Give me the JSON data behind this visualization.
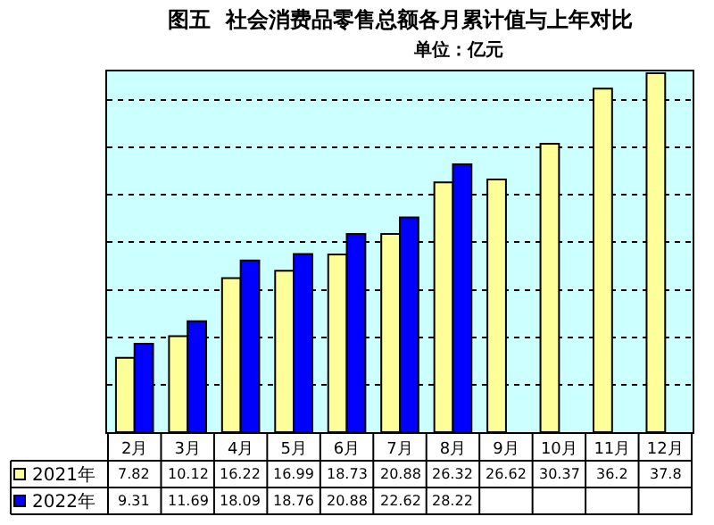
{
  "chart_data": {
    "type": "bar",
    "title": "图五  社会消费品零售总额各月累计值与上年对比",
    "subtitle": "单位：亿元",
    "categories": [
      "2月",
      "3月",
      "4月",
      "5月",
      "6月",
      "7月",
      "8月",
      "9月",
      "10月",
      "11月",
      "12月"
    ],
    "series": [
      {
        "name": "2021年",
        "color": "#ffff99",
        "values": [
          7.82,
          10.12,
          16.22,
          16.99,
          18.73,
          20.88,
          26.32,
          26.62,
          30.37,
          36.2,
          37.8
        ]
      },
      {
        "name": "2022年",
        "color": "#0000ff",
        "values": [
          9.31,
          11.69,
          18.09,
          18.76,
          20.88,
          22.62,
          28.22,
          null,
          null,
          null,
          null
        ]
      }
    ],
    "ylim": [
      0,
      38
    ],
    "yticks": [
      {
        "value": 5,
        "label": null
      },
      {
        "value": 10,
        "label": null
      },
      {
        "value": 15,
        "label": null
      },
      {
        "value": 20,
        "label": null
      },
      {
        "value": 25,
        "label": null
      },
      {
        "value": 30,
        "label": null
      },
      {
        "value": 35,
        "label": null
      }
    ],
    "grid": "y",
    "legend": "bottom",
    "data_labels": true,
    "tick_labels": "x"
  }
}
